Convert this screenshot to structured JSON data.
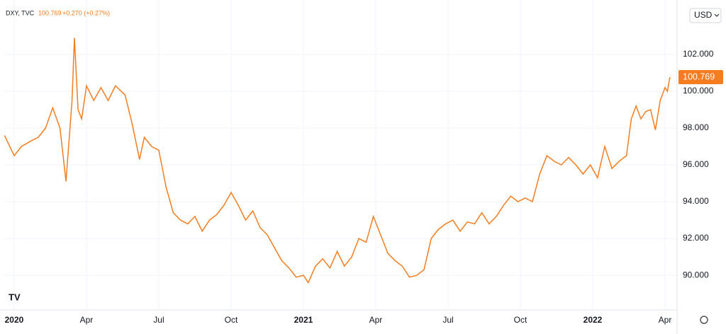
{
  "chart_data": {
    "type": "line",
    "legend": {
      "symbol": "DXY, TVC",
      "last": "100.769",
      "change": "+0.270 (+0.27%)"
    },
    "currency": "USD",
    "x": [
      -0.4,
      0.0,
      0.3,
      0.7,
      1.0,
      1.3,
      1.6,
      1.9,
      2.15,
      2.4,
      2.5,
      2.65,
      2.8,
      3.0,
      3.3,
      3.6,
      3.9,
      4.2,
      4.6,
      4.9,
      5.2,
      5.4,
      5.7,
      6.0,
      6.3,
      6.6,
      6.9,
      7.2,
      7.5,
      7.8,
      8.1,
      8.4,
      8.7,
      9.0,
      9.3,
      9.6,
      9.9,
      10.2,
      10.5,
      10.8,
      11.1,
      11.4,
      11.7,
      12.0,
      12.2,
      12.5,
      12.8,
      13.1,
      13.4,
      13.7,
      14.0,
      14.3,
      14.6,
      14.9,
      15.2,
      15.5,
      15.8,
      16.1,
      16.4,
      16.7,
      17.0,
      17.3,
      17.6,
      17.9,
      18.2,
      18.5,
      18.8,
      19.1,
      19.4,
      19.7,
      20.0,
      20.3,
      20.6,
      20.9,
      21.2,
      21.5,
      21.8,
      22.1,
      22.4,
      22.7,
      23.0,
      23.3,
      23.6,
      23.9,
      24.2,
      24.5,
      24.8,
      25.1,
      25.4,
      25.6,
      25.8,
      26.0,
      26.2,
      26.4,
      26.6,
      26.8,
      27.0,
      27.1,
      27.2
    ],
    "series": [
      {
        "name": "DXY",
        "color": "#f57c1f",
        "values": [
          97.6,
          96.5,
          97.0,
          97.3,
          97.5,
          98.0,
          99.1,
          98.0,
          95.1,
          99.5,
          102.9,
          99.0,
          98.5,
          100.3,
          99.5,
          100.2,
          99.5,
          100.3,
          99.8,
          98.2,
          96.3,
          97.5,
          97.0,
          96.8,
          94.8,
          93.4,
          93.0,
          92.8,
          93.2,
          92.4,
          93.0,
          93.3,
          93.8,
          94.5,
          93.8,
          93.0,
          93.5,
          92.6,
          92.2,
          91.5,
          90.8,
          90.4,
          89.9,
          90.0,
          89.6,
          90.5,
          90.9,
          90.4,
          91.3,
          90.5,
          91.0,
          92.0,
          91.8,
          93.2,
          92.2,
          91.2,
          90.8,
          90.5,
          89.9,
          90.0,
          90.3,
          92.0,
          92.5,
          92.8,
          93.0,
          92.4,
          92.9,
          92.8,
          93.4,
          92.8,
          93.2,
          93.8,
          94.3,
          94.0,
          94.2,
          94.0,
          95.5,
          96.5,
          96.2,
          96.0,
          96.4,
          96.0,
          95.5,
          96.0,
          95.3,
          97.0,
          95.8,
          96.2,
          96.5,
          98.5,
          99.2,
          98.5,
          98.9,
          99.0,
          97.9,
          99.5,
          100.2,
          100.0,
          100.769
        ]
      }
    ],
    "xlim": [
      -0.44,
      27.5
    ],
    "xticks": [
      {
        "value": 0,
        "label": "2020"
      },
      {
        "value": 3,
        "label": "Apr"
      },
      {
        "value": 6,
        "label": "Jul"
      },
      {
        "value": 9,
        "label": "Oct"
      },
      {
        "value": 12,
        "label": "2021"
      },
      {
        "value": 15,
        "label": "Apr"
      },
      {
        "value": 18,
        "label": "Jul"
      },
      {
        "value": 21,
        "label": "Oct"
      },
      {
        "value": 24,
        "label": "2022"
      },
      {
        "value": 27,
        "label": "Apr"
      }
    ],
    "ylim": [
      88.12,
      104.65
    ],
    "yticks": [
      {
        "value": 90,
        "label": "90.000"
      },
      {
        "value": 92,
        "label": "92.000"
      },
      {
        "value": 94,
        "label": "94.000"
      },
      {
        "value": 96,
        "label": "96.000"
      },
      {
        "value": 98,
        "label": "98.000"
      },
      {
        "value": 100,
        "label": "100.000"
      },
      {
        "value": 102,
        "label": "102.000"
      }
    ],
    "grid": true
  }
}
